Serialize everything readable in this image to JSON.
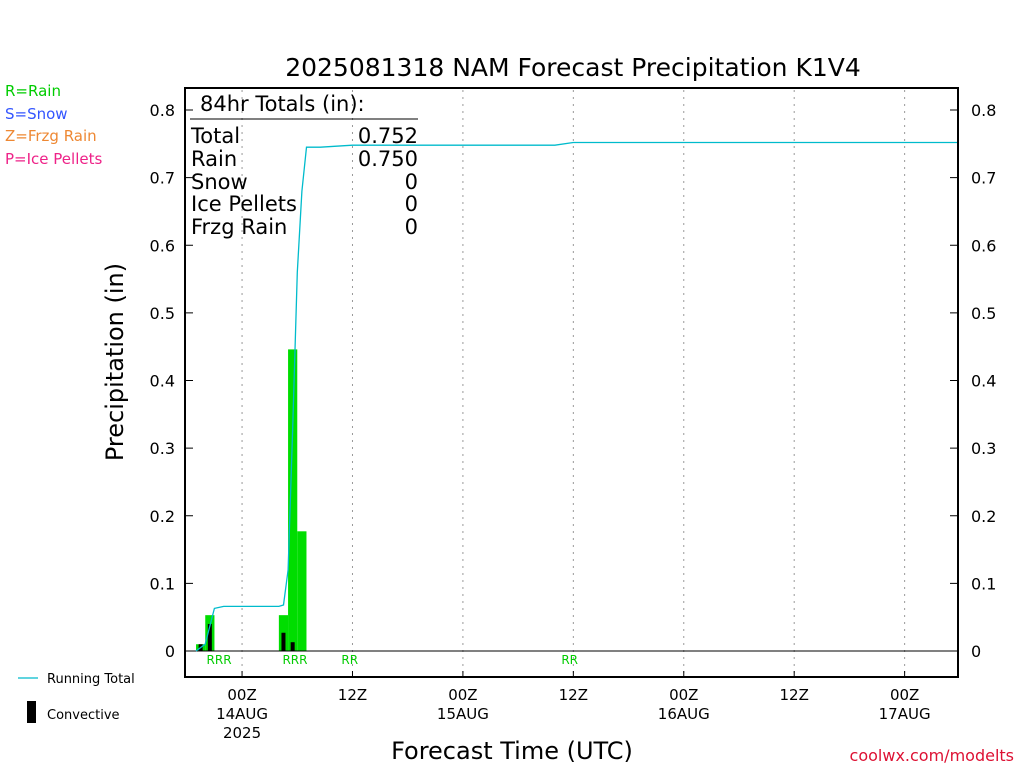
{
  "chart_data": {
    "type": "bar",
    "title": "2025081318 NAM Forecast Precipitation K1V4",
    "xlabel": "Forecast Time (UTC)",
    "ylabel": "Precipitation (in)",
    "ylim": [
      0,
      0.82
    ],
    "xlim_hours": [
      -6.2,
      77.8
    ],
    "y_ticks": [
      "0",
      "0.1",
      "0.2",
      "0.3",
      "0.4",
      "0.5",
      "0.6",
      "0.7",
      "0.8"
    ],
    "x_ticks": [
      {
        "hour": 0,
        "label": "00Z",
        "date": "14AUG",
        "year": "2025"
      },
      {
        "hour": 12,
        "label": "12Z",
        "date": "",
        "year": ""
      },
      {
        "hour": 24,
        "label": "00Z",
        "date": "15AUG",
        "year": ""
      },
      {
        "hour": 36,
        "label": "12Z",
        "date": "",
        "year": ""
      },
      {
        "hour": 48,
        "label": "00Z",
        "date": "16AUG",
        "year": ""
      },
      {
        "hour": 60,
        "label": "12Z",
        "date": "",
        "year": ""
      },
      {
        "hour": 72,
        "label": "00Z",
        "date": "17AUG",
        "year": ""
      }
    ],
    "grid": "vertical-dotted",
    "series": [
      {
        "name": "R=Rain",
        "color": "#00dd00",
        "bars": [
          {
            "hour": -4.0,
            "value": 0.01
          },
          {
            "hour": -3.0,
            "value": 0.053
          },
          {
            "hour": 5.0,
            "value": 0.053
          },
          {
            "hour": 6.0,
            "value": 0.446
          },
          {
            "hour": 7.0,
            "value": 0.177
          }
        ]
      },
      {
        "name": "Convective",
        "color": "#000000",
        "bars": [
          {
            "hour": -4.0,
            "value": 0.01
          },
          {
            "hour": -3.0,
            "value": 0.04
          },
          {
            "hour": 5.0,
            "value": 0.027
          },
          {
            "hour": 6.0,
            "value": 0.013
          }
        ]
      },
      {
        "name": "Running Total",
        "color": "#00bbcc",
        "points": [
          [
            -5.0,
            0.0
          ],
          [
            -4.0,
            0.01
          ],
          [
            -3.0,
            0.063
          ],
          [
            -2.0,
            0.066
          ],
          [
            4.0,
            0.066
          ],
          [
            4.5,
            0.068
          ],
          [
            5.0,
            0.12
          ],
          [
            5.5,
            0.33
          ],
          [
            6.0,
            0.56
          ],
          [
            6.5,
            0.68
          ],
          [
            7.0,
            0.745
          ],
          [
            8.5,
            0.745
          ],
          [
            12.0,
            0.748
          ],
          [
            34.0,
            0.748
          ],
          [
            36.0,
            0.752
          ],
          [
            77.8,
            0.752
          ]
        ]
      }
    ],
    "ptype_markers": [
      {
        "hour": -2.5,
        "text": "RRR"
      },
      {
        "hour": 5.75,
        "text": "RRR"
      },
      {
        "hour": 11.7,
        "text": "RR"
      },
      {
        "hour": 35.6,
        "text": "RR"
      }
    ]
  },
  "legend_top": [
    {
      "text": "R=Rain",
      "color": "#00cc00"
    },
    {
      "text": "S=Snow",
      "color": "#3355ff"
    },
    {
      "text": "Z=Frzg Rain",
      "color": "#ee8833"
    },
    {
      "text": "P=Ice Pellets",
      "color": "#ee2288"
    }
  ],
  "legend_bottom": {
    "running_total": "Running Total",
    "convective": "Convective"
  },
  "totals": {
    "header": "84hr Totals (in):",
    "rows": [
      {
        "label": "Total",
        "value": "0.752"
      },
      {
        "label": "Rain",
        "value": "0.750"
      },
      {
        "label": "Snow",
        "value": "0"
      },
      {
        "label": "Ice Pellets",
        "value": "0"
      },
      {
        "label": "Frzg Rain",
        "value": "0"
      }
    ]
  },
  "credit": "coolwx.com/modelts",
  "colors": {
    "rain": "#00dd00",
    "convective": "#000000",
    "running_total": "#00bbcc",
    "credit": "#dd1133"
  }
}
